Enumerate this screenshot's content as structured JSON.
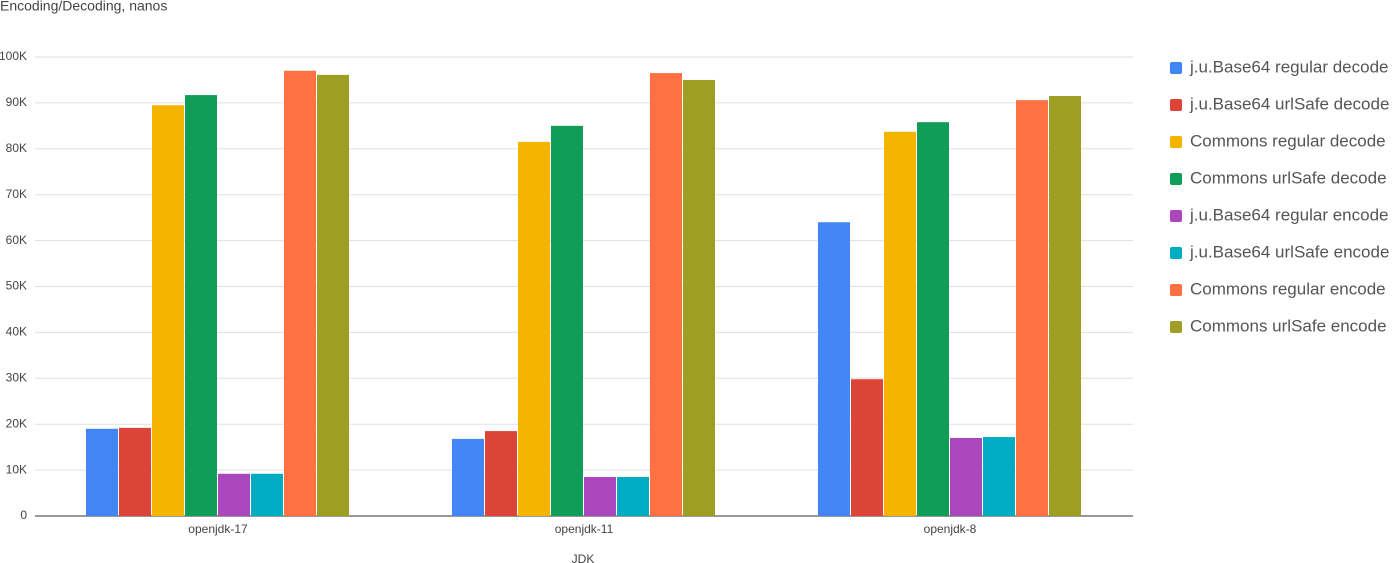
{
  "chart_data": {
    "type": "bar",
    "title": "Encoding/Decoding, nanos",
    "x_label": "JDK",
    "categories": [
      "openjdk-17",
      "openjdk-11",
      "openjdk-8"
    ],
    "series": [
      {
        "name": "j.u.Base64 regular decode",
        "color": "#4285f4",
        "values": [
          19000,
          16800,
          64000
        ]
      },
      {
        "name": "j.u.Base64 urlSafe decode",
        "color": "#db4437",
        "values": [
          19200,
          18500,
          29800
        ]
      },
      {
        "name": "Commons regular decode",
        "color": "#f4b400",
        "values": [
          89500,
          81500,
          83700
        ]
      },
      {
        "name": "Commons urlSafe decode",
        "color": "#0f9d58",
        "values": [
          91700,
          85000,
          85800
        ]
      },
      {
        "name": "j.u.Base64 regular encode",
        "color": "#ab47bc",
        "values": [
          9200,
          8500,
          17000
        ]
      },
      {
        "name": "j.u.Base64 urlSafe encode",
        "color": "#00acc1",
        "values": [
          9200,
          8500,
          17200
        ]
      },
      {
        "name": "Commons regular encode",
        "color": "#ff7043",
        "values": [
          97000,
          96500,
          90600
        ]
      },
      {
        "name": "Commons urlSafe encode",
        "color": "#9e9d24",
        "values": [
          96100,
          95000,
          91500
        ]
      }
    ],
    "ylim": [
      0,
      100000
    ],
    "yticks": [
      0,
      {
        "value": 10000,
        "label": "10K"
      },
      {
        "value": 20000,
        "label": "20K"
      },
      {
        "value": 30000,
        "label": "30K"
      },
      {
        "value": 40000,
        "label": "40K"
      },
      {
        "value": 50000,
        "label": "50K"
      },
      {
        "value": 60000,
        "label": "60K"
      },
      {
        "value": 70000,
        "label": "70K"
      },
      {
        "value": 80000,
        "label": "80K"
      },
      {
        "value": 90000,
        "label": "90K"
      },
      {
        "value": {
          "value": 100000,
          "label": "100K"
        },
        "label": "100K"
      }
    ],
    "grid": true,
    "legend": "right"
  }
}
